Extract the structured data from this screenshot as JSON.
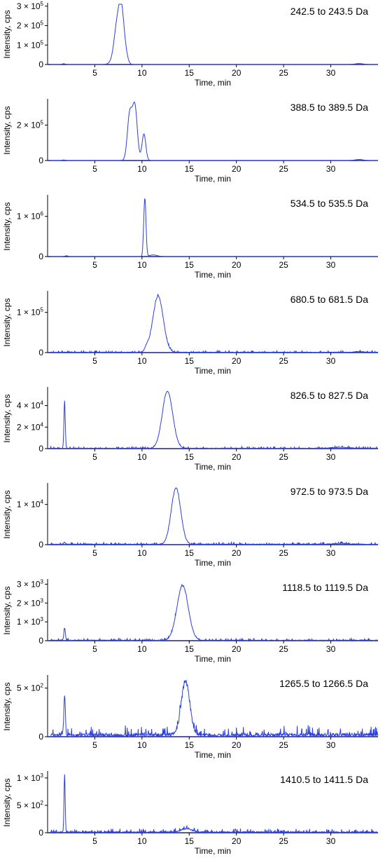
{
  "colors": {
    "trace": "#2b3fe0",
    "axis": "#000000",
    "baseline": "#1a237e"
  },
  "chart_data": [
    {
      "type": "line",
      "title": "242.5 to 243.5 Da",
      "xlabel": "Time, min",
      "ylabel": "Intensity, cps",
      "xlim": [
        0,
        35
      ],
      "ylim": [
        0,
        310000
      ],
      "x_ticks": [
        5,
        10,
        15,
        20,
        25,
        30
      ],
      "y_ticks": [
        {
          "value": 0,
          "label": "0"
        },
        {
          "value": 100000,
          "label": "1 × 10",
          "exp": "5"
        },
        {
          "value": 200000,
          "label": "2 × 10",
          "exp": "5"
        },
        {
          "value": 300000,
          "label": "3 × 10",
          "exp": "5"
        }
      ],
      "series": [
        {
          "peaks": [
            [
              1.7,
              4000,
              0.15
            ],
            [
              6.9,
              15000,
              0.35
            ],
            [
              7.35,
              190000,
              0.3
            ],
            [
              7.8,
              250000,
              0.25
            ],
            [
              8.2,
              70000,
              0.25
            ],
            [
              33.0,
              5000,
              0.4
            ]
          ],
          "noise": 0
        }
      ]
    },
    {
      "type": "line",
      "title": "388.5 to 389.5 Da",
      "xlabel": "Time, min",
      "ylabel": "Intensity, cps",
      "xlim": [
        0,
        35
      ],
      "ylim": [
        0,
        340000
      ],
      "x_ticks": [
        5,
        10,
        15,
        20,
        25,
        30
      ],
      "y_ticks": [
        {
          "value": 0,
          "label": "0"
        },
        {
          "value": 200000,
          "label": "2 × 10",
          "exp": "5"
        }
      ],
      "series": [
        {
          "peaks": [
            [
              1.7,
              3000,
              0.15
            ],
            [
              8.7,
              260000,
              0.25
            ],
            [
              9.25,
              300000,
              0.25
            ],
            [
              10.2,
              150000,
              0.2
            ],
            [
              33.0,
              6000,
              0.4
            ]
          ],
          "noise": 0
        }
      ]
    },
    {
      "type": "line",
      "title": "534.5 to 535.5 Da",
      "xlabel": "Time, min",
      "ylabel": "Intensity, cps",
      "xlim": [
        0,
        35
      ],
      "ylim": [
        0,
        1500000
      ],
      "x_ticks": [
        5,
        10,
        15,
        20,
        25,
        30
      ],
      "y_ticks": [
        {
          "value": 0,
          "label": "0"
        },
        {
          "value": 1000000,
          "label": "1 × 10",
          "exp": "6"
        }
      ],
      "series": [
        {
          "peaks": [
            [
              2.0,
              20000,
              0.15
            ],
            [
              10.3,
              1450000,
              0.12
            ],
            [
              11.2,
              40000,
              0.4
            ]
          ],
          "noise": 0
        }
      ]
    },
    {
      "type": "line",
      "title": "680.5 to 681.5 Da",
      "xlabel": "Time, min",
      "ylabel": "Intensity, cps",
      "xlim": [
        0,
        35
      ],
      "ylim": [
        0,
        150000
      ],
      "x_ticks": [
        5,
        10,
        15,
        20,
        25,
        30
      ],
      "y_ticks": [
        {
          "value": 0,
          "label": "0"
        },
        {
          "value": 100000,
          "label": "1 × 10",
          "exp": "5"
        }
      ],
      "series": [
        {
          "peaks": [
            [
              10.5,
              10000,
              0.2
            ],
            [
              11.7,
              140000,
              0.55
            ],
            [
              33.0,
              2000,
              0.4
            ]
          ],
          "noise": 3000
        }
      ]
    },
    {
      "type": "line",
      "title": "826.5 to 827.5 Da",
      "xlabel": "Time, min",
      "ylabel": "Intensity, cps",
      "xlim": [
        0,
        35
      ],
      "ylim": [
        0,
        56000
      ],
      "x_ticks": [
        5,
        10,
        15,
        20,
        25,
        30
      ],
      "y_ticks": [
        {
          "value": 0,
          "label": "0"
        },
        {
          "value": 20000,
          "label": "2 × 10",
          "exp": "4"
        },
        {
          "value": 40000,
          "label": "4 × 10",
          "exp": "4"
        }
      ],
      "series": [
        {
          "peaks": [
            [
              1.8,
              44000,
              0.07
            ],
            [
              12.7,
              53000,
              0.55
            ],
            [
              31.0,
              1000,
              0.8
            ]
          ],
          "noise": 1200
        }
      ]
    },
    {
      "type": "line",
      "title": "972.5 to 973.5 Da",
      "xlabel": "Time, min",
      "ylabel": "Intensity, cps",
      "xlim": [
        0,
        35
      ],
      "ylim": [
        0,
        15000
      ],
      "x_ticks": [
        5,
        10,
        15,
        20,
        25,
        30
      ],
      "y_ticks": [
        {
          "value": 0,
          "label": "0"
        },
        {
          "value": 10000,
          "label": "1 × 10",
          "exp": "4"
        }
      ],
      "series": [
        {
          "peaks": [
            [
              1.8,
              500,
              0.1
            ],
            [
              13.6,
              14000,
              0.5
            ],
            [
              31.0,
              200,
              0.8
            ]
          ],
          "noise": 400
        }
      ]
    },
    {
      "type": "line",
      "title": "1118.5 to 1119.5 Da",
      "xlabel": "Time, min",
      "ylabel": "Intensity, cps",
      "xlim": [
        0,
        35
      ],
      "ylim": [
        0,
        3200
      ],
      "x_ticks": [
        5,
        10,
        15,
        20,
        25,
        30
      ],
      "y_ticks": [
        {
          "value": 0,
          "label": "0"
        },
        {
          "value": 1000,
          "label": "1 × 10",
          "exp": "3"
        },
        {
          "value": 2000,
          "label": "2 × 10",
          "exp": "3"
        },
        {
          "value": 3000,
          "label": "3 × 10",
          "exp": "3"
        }
      ],
      "series": [
        {
          "peaks": [
            [
              1.8,
              650,
              0.08
            ],
            [
              14.3,
              2900,
              0.6
            ]
          ],
          "noise": 80
        }
      ]
    },
    {
      "type": "line",
      "title": "1265.5 to 1266.5 Da",
      "xlabel": "Time, min",
      "ylabel": "Intensity, cps",
      "xlim": [
        0,
        35
      ],
      "ylim": [
        0,
        620
      ],
      "x_ticks": [
        5,
        10,
        15,
        20,
        25,
        30
      ],
      "y_ticks": [
        {
          "value": 0,
          "label": "0"
        },
        {
          "value": 500,
          "label": "5 × 10",
          "exp": "2"
        }
      ],
      "series": [
        {
          "peaks": [
            [
              1.8,
              420,
              0.08
            ],
            [
              14.6,
              550,
              0.45
            ]
          ],
          "noise": 70
        }
      ]
    },
    {
      "type": "line",
      "title": "1410.5 to 1411.5 Da",
      "xlabel": "Time, min",
      "ylabel": "Intensity, cps",
      "xlim": [
        0,
        35
      ],
      "ylim": [
        0,
        1100
      ],
      "x_ticks": [
        5,
        10,
        15,
        20,
        25,
        30
      ],
      "y_ticks": [
        {
          "value": 0,
          "label": "0"
        },
        {
          "value": 500,
          "label": "5 × 10",
          "exp": "2"
        },
        {
          "value": 1000,
          "label": "1 × 10",
          "exp": "3"
        }
      ],
      "series": [
        {
          "peaks": [
            [
              1.8,
              1080,
              0.06
            ],
            [
              14.7,
              60,
              0.6
            ]
          ],
          "noise": 45
        }
      ]
    }
  ]
}
